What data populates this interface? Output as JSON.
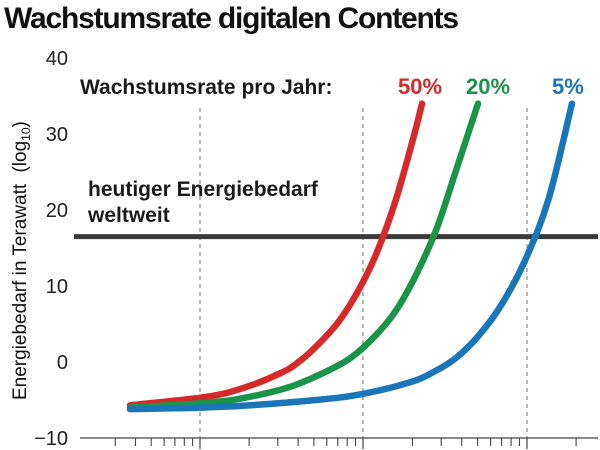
{
  "chart_data": {
    "type": "line",
    "title": "Wachstumsrate digitalen Contents",
    "ylabel_main": "Energiebedarf in Terawatt",
    "ylabel_unit_prefix": "(log",
    "ylabel_unit_sub": "10",
    "ylabel_unit_suffix": ")",
    "ylim": [
      -10,
      40
    ],
    "yticks": [
      40,
      30,
      20,
      10,
      0,
      -10
    ],
    "ytick_labels": [
      "40",
      "30",
      "20",
      "10",
      "0",
      "−10"
    ],
    "grid": "vertical dashed",
    "legend_prefix": "Wachstumsrate pro Jahr:",
    "reference_line": {
      "value": 16.5,
      "label_line1": "heutiger Energiebedarf",
      "label_line2": "weltweit",
      "color": "#3a3a3a"
    },
    "series": [
      {
        "name": "50%",
        "color": "#d62a2a",
        "points": [
          [
            0.0,
            -5.7
          ],
          [
            0.2,
            -4.6
          ],
          [
            0.3,
            -3.4
          ],
          [
            0.4,
            -1.4
          ],
          [
            0.45,
            0.2
          ],
          [
            0.5,
            2.5
          ],
          [
            0.55,
            5.3
          ],
          [
            0.6,
            9.2
          ],
          [
            0.65,
            14.3
          ],
          [
            0.7,
            21.2
          ],
          [
            0.75,
            30.0
          ],
          [
            0.77,
            34.0
          ]
        ]
      },
      {
        "name": "20%",
        "color": "#1a9448",
        "points": [
          [
            0.0,
            -6.0
          ],
          [
            0.2,
            -5.3
          ],
          [
            0.3,
            -4.5
          ],
          [
            0.4,
            -3.1
          ],
          [
            0.5,
            -0.7
          ],
          [
            0.55,
            1.0
          ],
          [
            0.6,
            3.5
          ],
          [
            0.65,
            6.8
          ],
          [
            0.7,
            11.6
          ],
          [
            0.75,
            17.7
          ],
          [
            0.8,
            25.8
          ],
          [
            0.85,
            34.0
          ]
        ]
      },
      {
        "name": "5%",
        "color": "#1a75b9",
        "points": [
          [
            0.0,
            -6.2
          ],
          [
            0.2,
            -5.9
          ],
          [
            0.4,
            -5.0
          ],
          [
            0.5,
            -4.2
          ],
          [
            0.6,
            -2.7
          ],
          [
            0.65,
            -1.4
          ],
          [
            0.7,
            0.5
          ],
          [
            0.75,
            3.5
          ],
          [
            0.8,
            7.7
          ],
          [
            0.85,
            13.5
          ],
          [
            0.9,
            21.5
          ],
          [
            0.95,
            34.0
          ]
        ]
      }
    ]
  }
}
